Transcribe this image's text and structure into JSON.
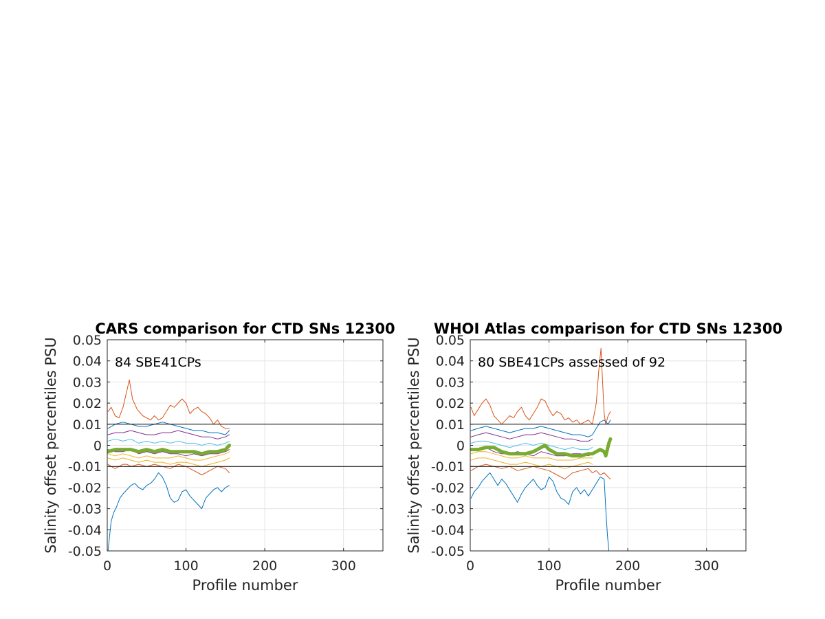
{
  "chart_data": [
    {
      "type": "line",
      "title": "CARS comparison for CTD SNs 12300",
      "annotation": "84 SBE41CPs",
      "xlabel": "Profile number",
      "ylabel": "Salinity offset percentiles PSU",
      "xlim": [
        0,
        350
      ],
      "ylim": [
        -0.05,
        0.05
      ],
      "xticks": [
        "0",
        "100",
        "200",
        "300"
      ],
      "yticks": [
        "0.05",
        "0.04",
        "0.03",
        "0.02",
        "0.01",
        "0",
        "-0.01",
        "-0.02",
        "-0.03",
        "-0.04",
        "-0.05"
      ],
      "grid": true,
      "reference_lines": [
        0.01,
        -0.01
      ],
      "series": [
        {
          "color": "#0072BD",
          "x": [
            1,
            3,
            5,
            8,
            12,
            16,
            20,
            25,
            30,
            35,
            40,
            45,
            50,
            55,
            60,
            65,
            70,
            75,
            80,
            85,
            90,
            95,
            100,
            105,
            110,
            115,
            120,
            125,
            130,
            135,
            140,
            145,
            150,
            155
          ],
          "y": [
            -0.05,
            -0.043,
            -0.036,
            -0.032,
            -0.029,
            -0.025,
            -0.023,
            -0.021,
            -0.019,
            -0.018,
            -0.02,
            -0.021,
            -0.019,
            -0.018,
            -0.016,
            -0.013,
            -0.015,
            -0.019,
            -0.025,
            -0.027,
            -0.026,
            -0.022,
            -0.021,
            -0.024,
            -0.026,
            -0.028,
            -0.03,
            -0.025,
            -0.023,
            -0.021,
            -0.02,
            -0.022,
            -0.02,
            -0.019
          ]
        },
        {
          "color": "#D95319",
          "x": [
            1,
            5,
            10,
            15,
            20,
            25,
            28,
            32,
            38,
            45,
            50,
            55,
            60,
            65,
            70,
            75,
            80,
            85,
            90,
            95,
            100,
            105,
            110,
            115,
            120,
            125,
            130,
            135,
            140,
            145,
            150,
            155
          ],
          "y": [
            0.016,
            0.018,
            0.014,
            0.013,
            0.018,
            0.026,
            0.031,
            0.022,
            0.017,
            0.014,
            0.013,
            0.012,
            0.014,
            0.012,
            0.013,
            0.016,
            0.019,
            0.018,
            0.02,
            0.022,
            0.02,
            0.015,
            0.017,
            0.018,
            0.016,
            0.015,
            0.013,
            0.01,
            0.012,
            0.009,
            0.008,
            0.008
          ]
        },
        {
          "color": "#D95319",
          "x": [
            1,
            5,
            10,
            15,
            20,
            25,
            30,
            40,
            50,
            60,
            70,
            80,
            90,
            100,
            110,
            120,
            130,
            140,
            150,
            155
          ],
          "y": [
            -0.009,
            -0.01,
            -0.011,
            -0.01,
            -0.009,
            -0.009,
            -0.01,
            -0.009,
            -0.01,
            -0.009,
            -0.01,
            -0.011,
            -0.009,
            -0.01,
            -0.012,
            -0.014,
            -0.012,
            -0.01,
            -0.011,
            -0.013
          ]
        },
        {
          "color": "#EDB120",
          "x": [
            1,
            10,
            20,
            30,
            40,
            50,
            60,
            70,
            80,
            90,
            100,
            110,
            120,
            130,
            140,
            150,
            155
          ],
          "y": [
            -0.006,
            -0.007,
            -0.006,
            -0.007,
            -0.008,
            -0.007,
            -0.008,
            -0.008,
            -0.009,
            -0.008,
            -0.008,
            -0.009,
            -0.01,
            -0.009,
            -0.008,
            -0.007,
            -0.006
          ]
        },
        {
          "color": "#EDB120",
          "x": [
            1,
            10,
            20,
            30,
            40,
            50,
            60,
            70,
            80,
            90,
            100,
            110,
            120,
            130,
            140,
            150,
            155
          ],
          "y": [
            -0.004,
            -0.005,
            -0.004,
            -0.005,
            -0.006,
            -0.005,
            -0.006,
            -0.006,
            -0.006,
            -0.005,
            -0.006,
            -0.007,
            -0.007,
            -0.006,
            -0.005,
            -0.004,
            -0.003
          ]
        },
        {
          "color": "#7E2F8E",
          "x": [
            1,
            10,
            20,
            30,
            40,
            50,
            60,
            70,
            80,
            90,
            100,
            110,
            120,
            130,
            140,
            150,
            155
          ],
          "y": [
            0.005,
            0.006,
            0.006,
            0.007,
            0.006,
            0.005,
            0.005,
            0.006,
            0.006,
            0.007,
            0.006,
            0.005,
            0.004,
            0.004,
            0.003,
            0.004,
            0.005
          ]
        },
        {
          "color": "#7E2F8E",
          "x": [
            1,
            10,
            20,
            30,
            40,
            50,
            60,
            70,
            80,
            90,
            100,
            110,
            120,
            130,
            140,
            150,
            155
          ],
          "y": [
            -0.002,
            -0.003,
            -0.003,
            -0.002,
            -0.004,
            -0.003,
            -0.004,
            -0.003,
            -0.004,
            -0.004,
            -0.005,
            -0.004,
            -0.005,
            -0.004,
            -0.004,
            -0.003,
            -0.002
          ]
        },
        {
          "color": "#0072BD",
          "x": [
            1,
            10,
            20,
            30,
            40,
            50,
            60,
            70,
            80,
            90,
            100,
            110,
            120,
            130,
            140,
            150,
            155
          ],
          "y": [
            0.008,
            0.01,
            0.011,
            0.01,
            0.009,
            0.009,
            0.01,
            0.011,
            0.01,
            0.009,
            0.008,
            0.007,
            0.007,
            0.006,
            0.006,
            0.005,
            0.007
          ]
        },
        {
          "color": "#4DBEEE",
          "x": [
            1,
            10,
            20,
            30,
            40,
            50,
            60,
            70,
            80,
            90,
            100,
            110,
            120,
            130,
            140,
            150,
            155
          ],
          "y": [
            0.002,
            0.003,
            0.002,
            0.003,
            0.001,
            0.002,
            0.001,
            0.002,
            0.001,
            0.002,
            0.001,
            0.001,
            0.0,
            0.001,
            0.0,
            0.001,
            0.002
          ]
        },
        {
          "color": "#77AC30",
          "width": 5,
          "x": [
            1,
            10,
            20,
            30,
            40,
            50,
            60,
            70,
            80,
            90,
            100,
            110,
            120,
            130,
            140,
            150,
            155
          ],
          "y": [
            -0.003,
            -0.002,
            -0.002,
            -0.002,
            -0.003,
            -0.002,
            -0.003,
            -0.002,
            -0.003,
            -0.003,
            -0.003,
            -0.003,
            -0.004,
            -0.003,
            -0.003,
            -0.002,
            0.0
          ]
        }
      ]
    },
    {
      "type": "line",
      "title": "WHOI Atlas comparison for CTD SNs 12300",
      "annotation": "80 SBE41CPs assessed of 92",
      "xlabel": "Profile number",
      "ylabel": "Salinity offset percentiles PSU",
      "xlim": [
        0,
        350
      ],
      "ylim": [
        -0.05,
        0.05
      ],
      "xticks": [
        "0",
        "100",
        "200",
        "300"
      ],
      "yticks": [
        "0.05",
        "0.04",
        "0.03",
        "0.02",
        "0.01",
        "0",
        "-0.01",
        "-0.02",
        "-0.03",
        "-0.04",
        "-0.05"
      ],
      "grid": true,
      "reference_lines": [
        0.01,
        -0.01
      ],
      "series": [
        {
          "color": "#0072BD",
          "x": [
            1,
            5,
            10,
            15,
            20,
            25,
            30,
            35,
            40,
            45,
            50,
            55,
            60,
            65,
            70,
            75,
            80,
            85,
            90,
            95,
            100,
            105,
            110,
            115,
            120,
            125,
            130,
            135,
            140,
            145,
            150,
            155,
            160,
            165,
            170,
            172,
            174,
            176
          ],
          "y": [
            -0.025,
            -0.022,
            -0.02,
            -0.017,
            -0.015,
            -0.013,
            -0.016,
            -0.019,
            -0.016,
            -0.018,
            -0.021,
            -0.024,
            -0.027,
            -0.023,
            -0.02,
            -0.018,
            -0.016,
            -0.019,
            -0.021,
            -0.02,
            -0.015,
            -0.017,
            -0.022,
            -0.025,
            -0.026,
            -0.028,
            -0.022,
            -0.02,
            -0.023,
            -0.021,
            -0.024,
            -0.021,
            -0.018,
            -0.015,
            -0.016,
            -0.03,
            -0.042,
            -0.05
          ]
        },
        {
          "color": "#D95319",
          "x": [
            1,
            5,
            10,
            15,
            20,
            25,
            30,
            35,
            40,
            45,
            50,
            55,
            60,
            65,
            70,
            75,
            80,
            85,
            90,
            95,
            100,
            105,
            110,
            115,
            120,
            125,
            130,
            135,
            140,
            145,
            150,
            155,
            160,
            163,
            166,
            168,
            170,
            172,
            175,
            178
          ],
          "y": [
            0.018,
            0.014,
            0.017,
            0.02,
            0.022,
            0.019,
            0.014,
            0.012,
            0.01,
            0.012,
            0.014,
            0.013,
            0.016,
            0.018,
            0.014,
            0.012,
            0.015,
            0.018,
            0.022,
            0.021,
            0.017,
            0.014,
            0.016,
            0.015,
            0.012,
            0.013,
            0.011,
            0.012,
            0.01,
            0.011,
            0.012,
            0.01,
            0.02,
            0.035,
            0.046,
            0.03,
            0.015,
            0.01,
            0.014,
            0.016
          ]
        },
        {
          "color": "#D95319",
          "x": [
            1,
            10,
            20,
            30,
            40,
            50,
            60,
            70,
            80,
            90,
            100,
            110,
            120,
            130,
            140,
            150,
            155,
            160,
            165,
            170,
            175,
            178
          ],
          "y": [
            -0.012,
            -0.01,
            -0.009,
            -0.01,
            -0.011,
            -0.01,
            -0.012,
            -0.011,
            -0.01,
            -0.011,
            -0.012,
            -0.014,
            -0.016,
            -0.013,
            -0.012,
            -0.011,
            -0.013,
            -0.012,
            -0.014,
            -0.013,
            -0.015,
            -0.016
          ]
        },
        {
          "color": "#EDB120",
          "x": [
            1,
            10,
            20,
            30,
            40,
            50,
            60,
            70,
            80,
            90,
            100,
            110,
            120,
            130,
            140,
            150,
            155
          ],
          "y": [
            -0.007,
            -0.006,
            -0.006,
            -0.007,
            -0.008,
            -0.009,
            -0.009,
            -0.008,
            -0.009,
            -0.01,
            -0.009,
            -0.01,
            -0.011,
            -0.01,
            -0.009,
            -0.008,
            -0.009
          ]
        },
        {
          "color": "#EDB120",
          "x": [
            1,
            10,
            20,
            30,
            40,
            50,
            60,
            70,
            80,
            90,
            100,
            110,
            120,
            130,
            140,
            150,
            155
          ],
          "y": [
            -0.004,
            -0.003,
            -0.003,
            -0.004,
            -0.005,
            -0.006,
            -0.006,
            -0.005,
            -0.006,
            -0.006,
            -0.006,
            -0.007,
            -0.007,
            -0.007,
            -0.006,
            -0.006,
            -0.006
          ]
        },
        {
          "color": "#7E2F8E",
          "x": [
            1,
            10,
            20,
            30,
            40,
            50,
            60,
            70,
            80,
            90,
            100,
            110,
            120,
            130,
            140,
            150,
            155
          ],
          "y": [
            0.004,
            0.005,
            0.006,
            0.005,
            0.004,
            0.003,
            0.004,
            0.005,
            0.005,
            0.006,
            0.005,
            0.004,
            0.003,
            0.003,
            0.002,
            0.002,
            0.003
          ]
        },
        {
          "color": "#7E2F8E",
          "x": [
            1,
            10,
            20,
            30,
            40,
            50,
            60,
            70,
            80,
            90,
            100,
            110,
            120,
            130,
            140,
            150,
            155
          ],
          "y": [
            -0.002,
            -0.002,
            -0.001,
            -0.003,
            -0.004,
            -0.004,
            -0.003,
            -0.004,
            -0.005,
            -0.003,
            -0.004,
            -0.005,
            -0.005,
            -0.004,
            -0.004,
            -0.005,
            -0.004
          ]
        },
        {
          "color": "#0072BD",
          "x": [
            1,
            10,
            20,
            30,
            40,
            50,
            60,
            70,
            80,
            90,
            100,
            110,
            120,
            130,
            140,
            150,
            155,
            160,
            165,
            170,
            175,
            178
          ],
          "y": [
            0.007,
            0.008,
            0.009,
            0.008,
            0.007,
            0.006,
            0.007,
            0.008,
            0.008,
            0.009,
            0.008,
            0.007,
            0.006,
            0.005,
            0.005,
            0.004,
            0.005,
            0.008,
            0.011,
            0.012,
            0.01,
            0.012
          ]
        },
        {
          "color": "#4DBEEE",
          "x": [
            1,
            10,
            20,
            30,
            40,
            50,
            60,
            70,
            80,
            90,
            100,
            110,
            120,
            130,
            140,
            150,
            155
          ],
          "y": [
            0.001,
            0.002,
            0.002,
            0.001,
            0.0,
            -0.001,
            0.0,
            0.001,
            0.0,
            0.001,
            0.0,
            -0.001,
            -0.002,
            -0.001,
            -0.002,
            -0.002,
            -0.001
          ]
        },
        {
          "color": "#77AC30",
          "width": 5,
          "x": [
            1,
            10,
            20,
            30,
            40,
            50,
            60,
            70,
            80,
            90,
            95,
            100,
            110,
            120,
            130,
            140,
            150,
            155,
            165,
            170,
            172,
            174,
            176,
            178
          ],
          "y": [
            -0.002,
            -0.002,
            -0.001,
            -0.001,
            -0.003,
            -0.004,
            -0.004,
            -0.004,
            -0.003,
            -0.001,
            0.0,
            -0.002,
            -0.004,
            -0.004,
            -0.005,
            -0.005,
            -0.004,
            -0.004,
            -0.002,
            -0.003,
            -0.005,
            -0.002,
            0.001,
            0.003
          ]
        }
      ]
    }
  ]
}
